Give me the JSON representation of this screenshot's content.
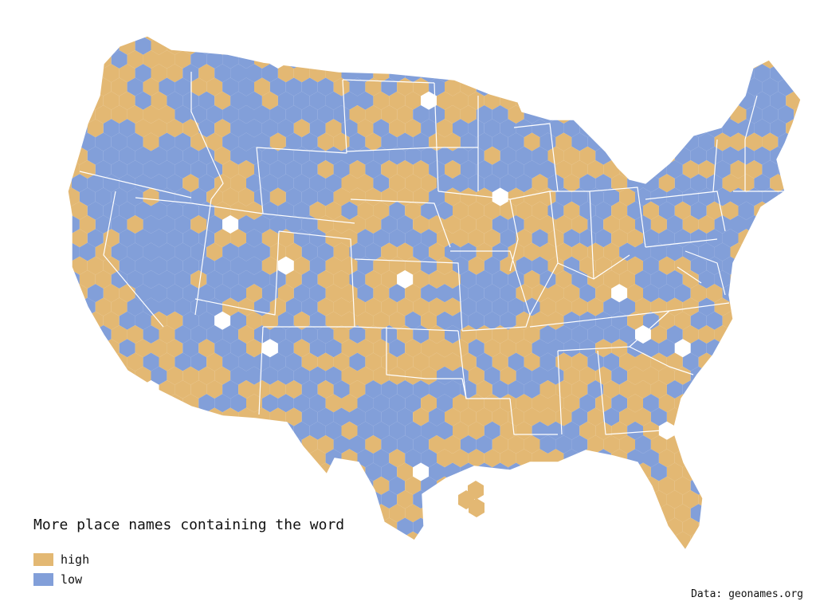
{
  "legend": {
    "title": "More place names containing the word",
    "items": [
      {
        "key": "high",
        "label": "high",
        "color": "#E3B873"
      },
      {
        "key": "low",
        "label": "low",
        "color": "#829FD9"
      }
    ]
  },
  "source": "Data: geonames.org",
  "colors": {
    "high": "#E3B873",
    "low": "#829FD9",
    "background": "#ffffff",
    "borders": "#ffffff"
  }
}
